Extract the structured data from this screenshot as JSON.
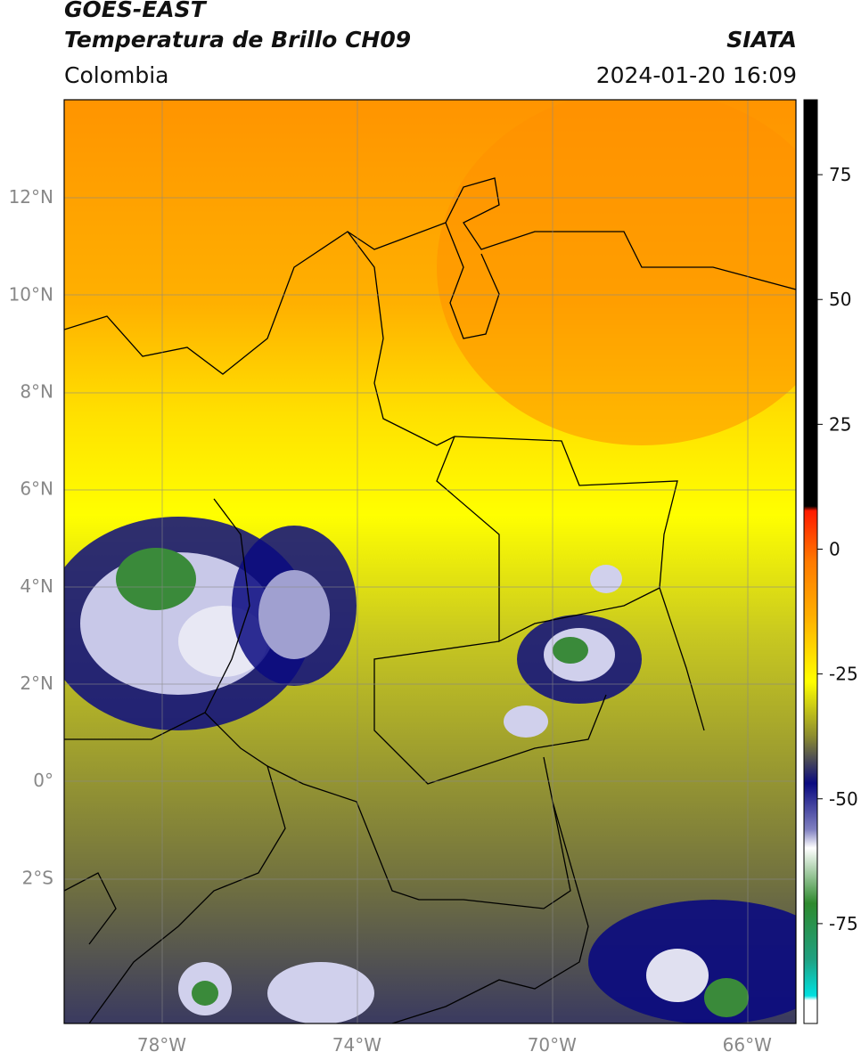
{
  "header": {
    "satellite": "GOES-EAST",
    "product": "Temperatura de Brillo CH09",
    "region": "Colombia",
    "source": "SIATA",
    "datetime": "2024-01-20 16:09"
  },
  "map": {
    "lon_range": [
      -80,
      -65
    ],
    "lat_range": [
      -5,
      14
    ],
    "lat_ticks": [
      {
        "value": 12,
        "label": "12°N"
      },
      {
        "value": 10,
        "label": "10°N"
      },
      {
        "value": 8,
        "label": "8°N"
      },
      {
        "value": 6,
        "label": "6°N"
      },
      {
        "value": 4,
        "label": "4°N"
      },
      {
        "value": 2,
        "label": "2°N"
      },
      {
        "value": 0,
        "label": "0°"
      },
      {
        "value": -2,
        "label": "2°S"
      }
    ],
    "lon_ticks": [
      {
        "value": -78,
        "label": "78°W"
      },
      {
        "value": -74,
        "label": "74°W"
      },
      {
        "value": -70,
        "label": "70°W"
      },
      {
        "value": -66,
        "label": "66°W"
      }
    ],
    "grid": true
  },
  "colorbar": {
    "range": [
      -95,
      90
    ],
    "ticks": [
      {
        "value": 75,
        "label": "75"
      },
      {
        "value": 50,
        "label": "50"
      },
      {
        "value": 25,
        "label": "25"
      },
      {
        "value": 0,
        "label": "0"
      },
      {
        "value": -25,
        "label": "-25"
      },
      {
        "value": -50,
        "label": "-50"
      },
      {
        "value": -75,
        "label": "-75"
      }
    ],
    "colors": {
      "warm": "#000000",
      "red": "#ff1a00",
      "orange": "#ff9a00",
      "yellow": "#ffff00",
      "olive": "#8a8a30",
      "navy": "#0a0a80",
      "white": "#ffffff",
      "green": "#2e8a2e",
      "teal": "#00c8c8"
    }
  }
}
